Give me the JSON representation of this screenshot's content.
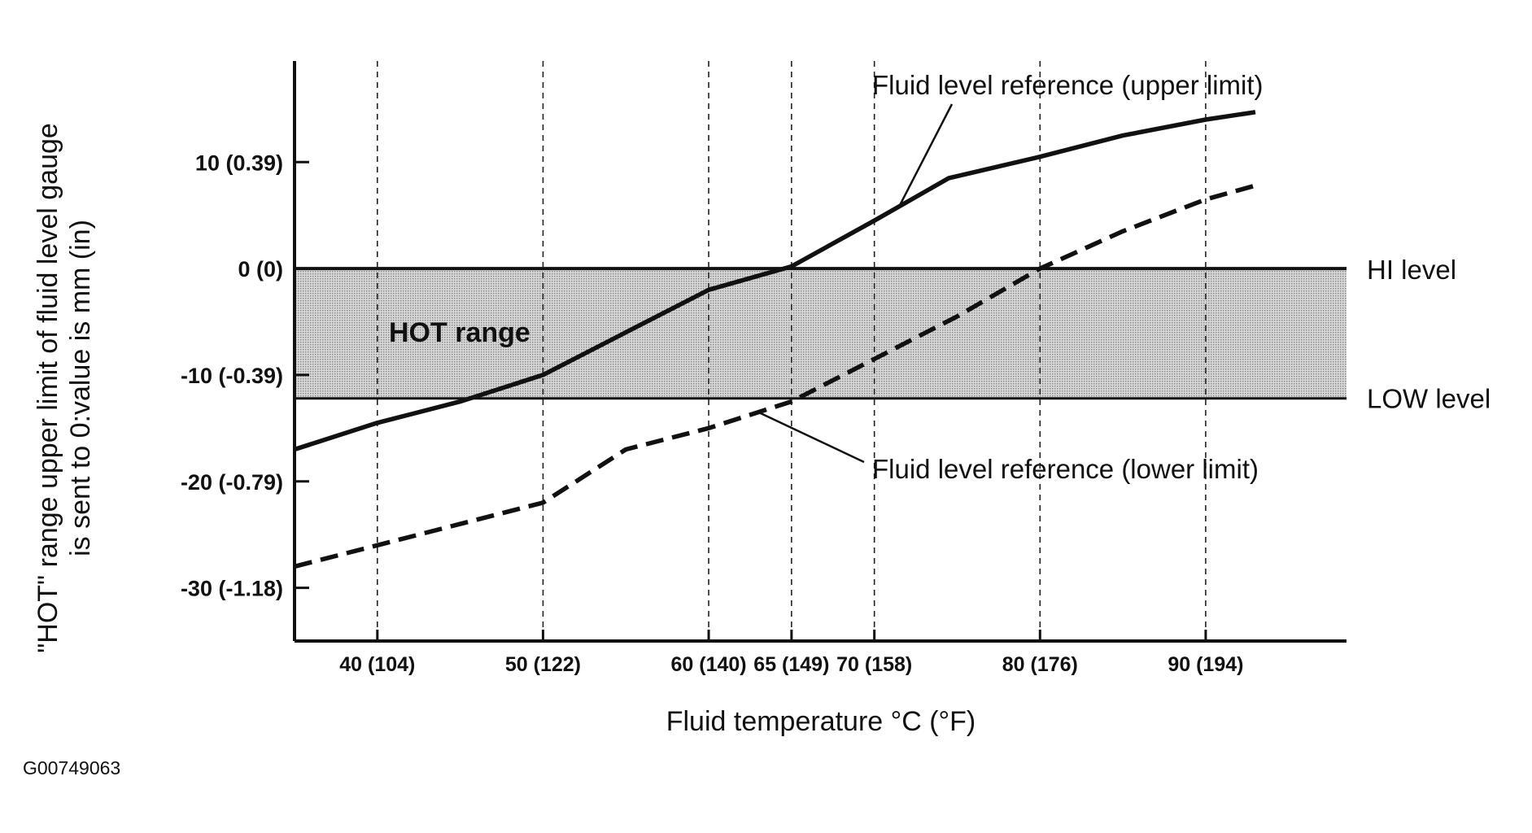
{
  "chart_data": {
    "type": "line",
    "xlabel": "Fluid temperature °C (°F)",
    "ylabel": [
      "\"HOT\" range upper limit of fluid level gauge",
      "is sent to 0:value is mm (in)"
    ],
    "xlim": [
      35,
      98.5
    ],
    "ylim": [
      -35,
      19.5
    ],
    "x_ticks": [
      {
        "value": 40,
        "label": "40 (104)"
      },
      {
        "value": 50,
        "label": "50 (122)"
      },
      {
        "value": 60,
        "label": "60 (140)"
      },
      {
        "value": 65,
        "label": "65 (149)"
      },
      {
        "value": 70,
        "label": "70 (158)"
      },
      {
        "value": 80,
        "label": "80 (176)"
      },
      {
        "value": 90,
        "label": "90 (194)"
      }
    ],
    "y_ticks": [
      {
        "value": 10,
        "label": "10 (0.39)"
      },
      {
        "value": 0,
        "label": "0 (0)"
      },
      {
        "value": -10,
        "label": "-10 (-0.39)"
      },
      {
        "value": -20,
        "label": "-20 (-0.79)"
      },
      {
        "value": -30,
        "label": "-30 (-1.18)"
      }
    ],
    "grid": {
      "vertical": true,
      "style": "dashed",
      "horizontal": false
    },
    "band": {
      "label": "HOT range",
      "y_from": -12.2,
      "y_to": 0,
      "upper_line_label": "HI level",
      "lower_line_label": "LOW level"
    },
    "series": [
      {
        "name": "Fluid level reference (upper limit)",
        "style": "solid",
        "points": [
          [
            35,
            -17
          ],
          [
            40,
            -14.5
          ],
          [
            45,
            -12.5
          ],
          [
            50,
            -10
          ],
          [
            55,
            -6
          ],
          [
            60,
            -2
          ],
          [
            65,
            0.2
          ],
          [
            70,
            4.5
          ],
          [
            74.5,
            8.5
          ],
          [
            80,
            10.5
          ],
          [
            85,
            12.5
          ],
          [
            90,
            14
          ],
          [
            93,
            14.7
          ]
        ]
      },
      {
        "name": "Fluid level reference (lower limit)",
        "style": "dashed",
        "points": [
          [
            35,
            -28
          ],
          [
            40,
            -26
          ],
          [
            45,
            -24
          ],
          [
            50,
            -22
          ],
          [
            55,
            -17
          ],
          [
            60,
            -15
          ],
          [
            65,
            -12.5
          ],
          [
            70,
            -8.5
          ],
          [
            75,
            -4.5
          ],
          [
            80,
            0
          ],
          [
            85,
            3.5
          ],
          [
            90,
            6.5
          ],
          [
            93,
            7.8
          ]
        ]
      }
    ],
    "annotations": [
      {
        "id": "upper",
        "text": "Fluid level reference (upper limit)",
        "series": 0,
        "point_x": 71.5
      },
      {
        "id": "lower",
        "text": "Fluid level reference (lower limit)",
        "series": 1,
        "point_x": 63
      }
    ]
  },
  "figure_code": "G00749063"
}
